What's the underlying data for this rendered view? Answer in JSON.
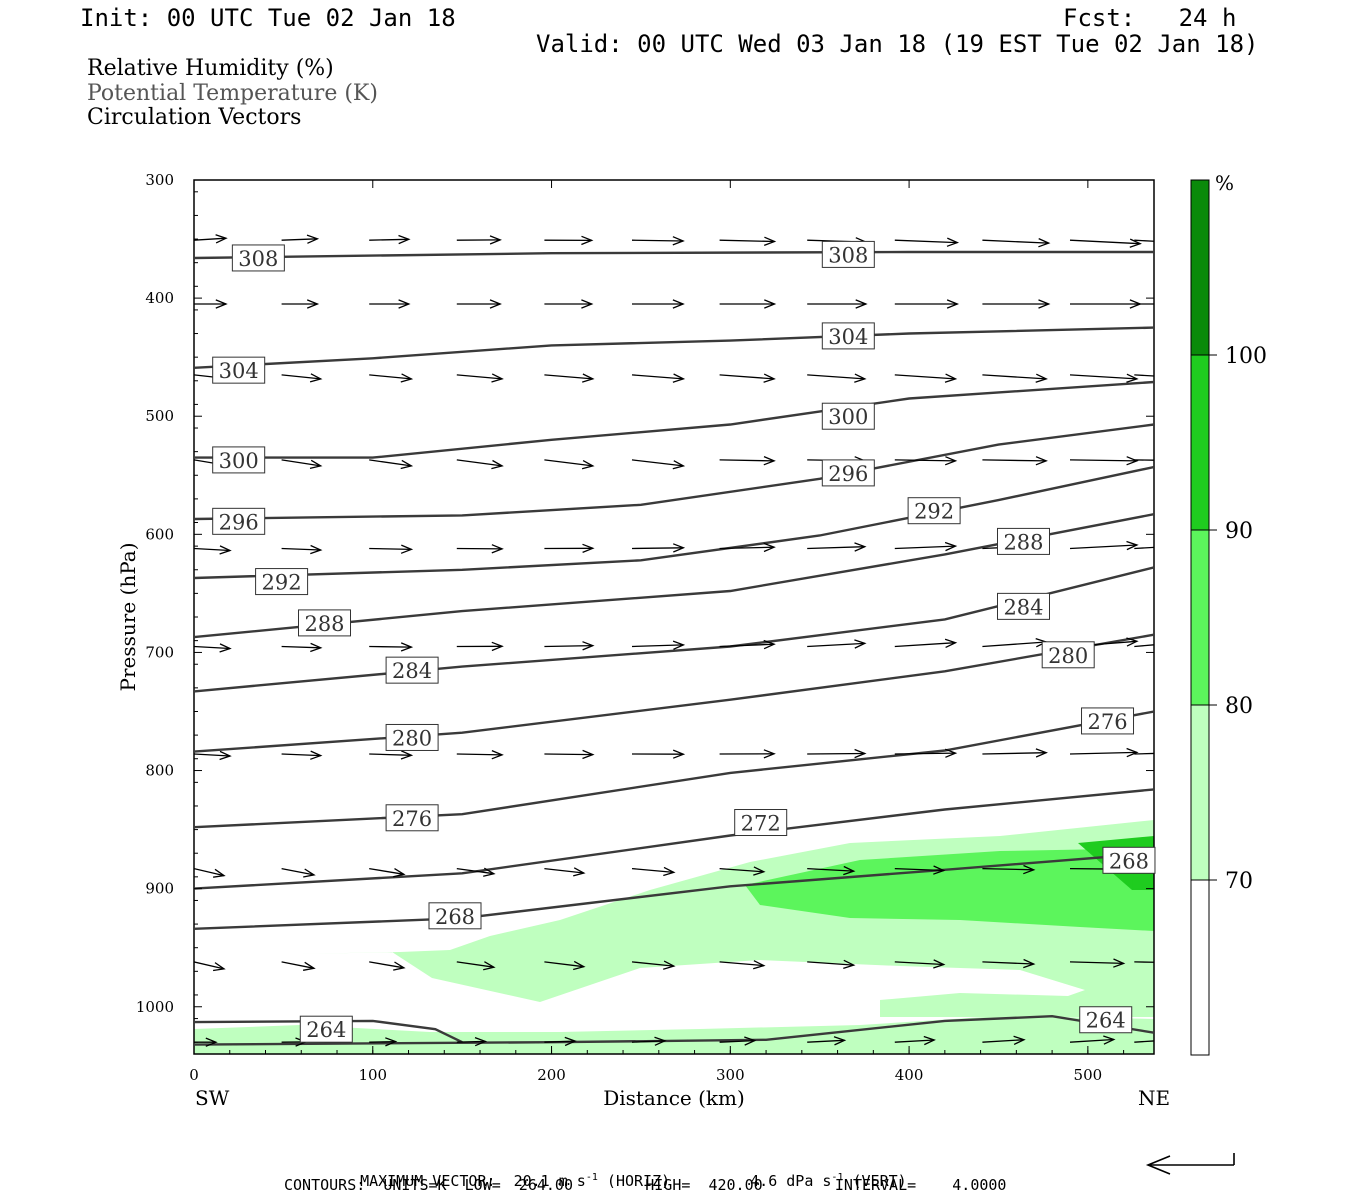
{
  "header": {
    "init": "Init: 00 UTC Tue 02 Jan 18",
    "fcst": "Fcst:   24 h",
    "valid": "Valid: 00 UTC Wed 03 Jan 18 (19 EST Tue 02 Jan 18)"
  },
  "legend_lines": [
    {
      "text": "Relative Humidity (%)",
      "color": "#000000"
    },
    {
      "text": "Potential Temperature (K)",
      "color": "#555555"
    },
    {
      "text": "Circulation Vectors",
      "color": "#000000"
    }
  ],
  "footer": {
    "line1_a": "MAXIMUM VECTOR:  20.1 m s",
    "line1_b": " (HORIZ)",
    "line1_c": "4.6 dPa s",
    "line1_d": " (VERT)",
    "sup": "-1",
    "line2": "CONTOURS:  UNITS=K  LOW=  264.00        HIGH=  420.00        INTERVAL=    4.0000"
  },
  "colorbar": {
    "unit": "%",
    "levels": [
      "70",
      "80",
      "90",
      "100"
    ],
    "colors": [
      "#ffffff",
      "#bfffbf",
      "#5cf55c",
      "#1fcc1f",
      "#0a8a0a"
    ]
  },
  "chart_data": {
    "type": "cross-section",
    "xlabel": "Distance (km)",
    "ylabel": "Pressure (hPa)",
    "xlim": [
      0,
      537
    ],
    "ylim": [
      1040,
      300
    ],
    "x_ticks": [
      "0",
      "100",
      "200",
      "300",
      "400",
      "500"
    ],
    "y_ticks": [
      "300",
      "400",
      "500",
      "600",
      "700",
      "800",
      "900",
      "1000"
    ],
    "x_end_labels": {
      "left": "SW",
      "right": "NE"
    },
    "theta_contours": [
      {
        "label": "308",
        "points": [
          [
            0,
            366
          ],
          [
            200,
            362
          ],
          [
            400,
            361
          ],
          [
            537,
            361
          ]
        ],
        "label_at": [
          [
            36,
            366
          ],
          [
            366,
            363
          ]
        ]
      },
      {
        "label": "304",
        "points": [
          [
            0,
            459
          ],
          [
            100,
            451
          ],
          [
            200,
            440
          ],
          [
            300,
            436
          ],
          [
            400,
            430
          ],
          [
            537,
            425
          ]
        ],
        "label_at": [
          [
            25,
            461
          ],
          [
            366,
            432
          ]
        ]
      },
      {
        "label": "300",
        "points": [
          [
            0,
            535
          ],
          [
            100,
            535
          ],
          [
            200,
            520
          ],
          [
            300,
            507
          ],
          [
            400,
            485
          ],
          [
            537,
            471
          ]
        ],
        "label_at": [
          [
            25,
            537
          ],
          [
            366,
            500
          ]
        ]
      },
      {
        "label": "296",
        "points": [
          [
            0,
            587
          ],
          [
            150,
            584
          ],
          [
            250,
            575
          ],
          [
            350,
            553
          ],
          [
            450,
            524
          ],
          [
            537,
            507
          ]
        ],
        "label_at": [
          [
            25,
            589
          ],
          [
            366,
            548
          ]
        ]
      },
      {
        "label": "292",
        "points": [
          [
            0,
            637
          ],
          [
            150,
            630
          ],
          [
            250,
            622
          ],
          [
            350,
            601
          ],
          [
            450,
            571
          ],
          [
            537,
            543
          ]
        ],
        "label_at": [
          [
            49,
            640
          ],
          [
            414,
            580
          ]
        ]
      },
      {
        "label": "288",
        "points": [
          [
            0,
            687
          ],
          [
            150,
            665
          ],
          [
            300,
            648
          ],
          [
            420,
            617
          ],
          [
            537,
            583
          ]
        ],
        "label_at": [
          [
            73,
            675
          ],
          [
            464,
            606
          ]
        ]
      },
      {
        "label": "284",
        "points": [
          [
            0,
            733
          ],
          [
            150,
            712
          ],
          [
            300,
            695
          ],
          [
            420,
            672
          ],
          [
            537,
            628
          ]
        ],
        "label_at": [
          [
            122,
            715
          ],
          [
            464,
            661
          ]
        ]
      },
      {
        "label": "280",
        "points": [
          [
            0,
            784
          ],
          [
            150,
            768
          ],
          [
            300,
            740
          ],
          [
            420,
            716
          ],
          [
            537,
            685
          ]
        ],
        "label_at": [
          [
            122,
            772
          ],
          [
            489,
            702
          ]
        ]
      },
      {
        "label": "276",
        "points": [
          [
            0,
            848
          ],
          [
            150,
            837
          ],
          [
            300,
            802
          ],
          [
            420,
            783
          ],
          [
            537,
            750
          ]
        ],
        "label_at": [
          [
            122,
            840
          ],
          [
            511,
            758
          ]
        ]
      },
      {
        "label": "272",
        "points": [
          [
            0,
            900
          ],
          [
            150,
            887
          ],
          [
            300,
            855
          ],
          [
            420,
            833
          ],
          [
            537,
            816
          ]
        ],
        "label_at": [
          [
            317,
            844
          ]
        ]
      },
      {
        "label": "268",
        "points": [
          [
            0,
            934
          ],
          [
            150,
            925
          ],
          [
            300,
            898
          ],
          [
            420,
            884
          ],
          [
            537,
            870
          ]
        ],
        "label_at": [
          [
            146,
            923
          ],
          [
            523,
            876
          ]
        ]
      },
      {
        "label": "264",
        "points": [
          [
            0,
            1013
          ],
          [
            100,
            1012
          ],
          [
            135,
            1019
          ],
          [
            150,
            1030
          ]
        ],
        "label_at": [
          [
            74,
            1019
          ]
        ]
      },
      {
        "label": "264",
        "points": [
          [
            0,
            1032
          ],
          [
            200,
            1030
          ],
          [
            320,
            1028
          ],
          [
            420,
            1012
          ],
          [
            480,
            1008
          ],
          [
            537,
            1022
          ]
        ],
        "label_at": [
          [
            510,
            1011
          ]
        ]
      }
    ],
    "vector_columns_km": [
      0,
      49,
      98,
      147,
      196,
      245,
      294,
      343,
      392,
      441,
      490,
      526
    ],
    "vector_rows_hpa": [
      351,
      405,
      465,
      537,
      612,
      695,
      786,
      883,
      962,
      1030
    ]
  }
}
